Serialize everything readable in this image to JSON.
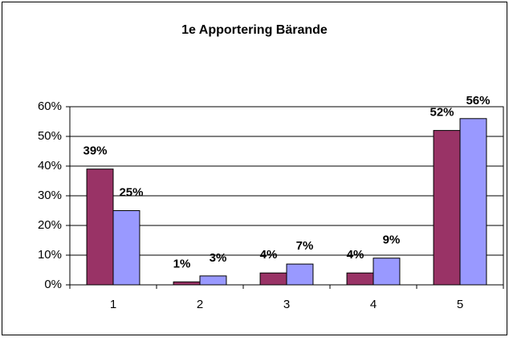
{
  "chart_data": {
    "type": "bar",
    "title": "1e Apportering Bärande",
    "categories": [
      "1",
      "2",
      "3",
      "4",
      "5"
    ],
    "series": [
      {
        "color": "#993366",
        "values": [
          39,
          1,
          4,
          4,
          52
        ],
        "value_labels": [
          "39%",
          "1%",
          "4%",
          "4%",
          "52%"
        ]
      },
      {
        "color": "#9999ff",
        "values": [
          25,
          3,
          7,
          9,
          56
        ],
        "value_labels": [
          "25%",
          "3%",
          "7%",
          "9%",
          "56%"
        ]
      }
    ],
    "ylim": [
      0,
      60
    ],
    "yticks": [
      {
        "value": 0,
        "label": "0%"
      },
      {
        "value": 10,
        "label": "10%"
      },
      {
        "value": 20,
        "label": "20%"
      },
      {
        "value": 30,
        "label": "30%"
      },
      {
        "value": 40,
        "label": "40%"
      },
      {
        "value": 50,
        "label": "50%"
      },
      {
        "value": 60,
        "label": "60%"
      }
    ],
    "grid": true
  }
}
